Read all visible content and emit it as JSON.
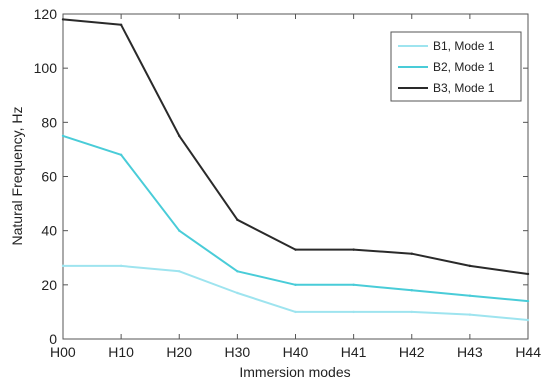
{
  "chart_data": {
    "type": "line",
    "title": "",
    "xlabel": "Immersion modes",
    "ylabel": "Natural Frequency, Hz",
    "categories": [
      "H00",
      "H10",
      "H20",
      "H30",
      "H40",
      "H41",
      "H42",
      "H43",
      "H44"
    ],
    "ylim": [
      0,
      120
    ],
    "yticks": [
      0,
      20,
      40,
      60,
      80,
      100,
      120
    ],
    "grid": false,
    "legend_position": "top-right",
    "series": [
      {
        "name": "B1, Mode 1",
        "color": "#9ee4ef",
        "values": [
          27,
          27,
          25,
          17,
          10,
          10,
          10,
          9,
          7
        ]
      },
      {
        "name": "B2, Mode 1",
        "color": "#49ccd8",
        "values": [
          75,
          68,
          40,
          25,
          20,
          20,
          18,
          16,
          14
        ]
      },
      {
        "name": "B3, Mode 1",
        "color": "#2a2a2a",
        "values": [
          118,
          116,
          75,
          44,
          33,
          33,
          31.5,
          27,
          24
        ]
      }
    ]
  }
}
